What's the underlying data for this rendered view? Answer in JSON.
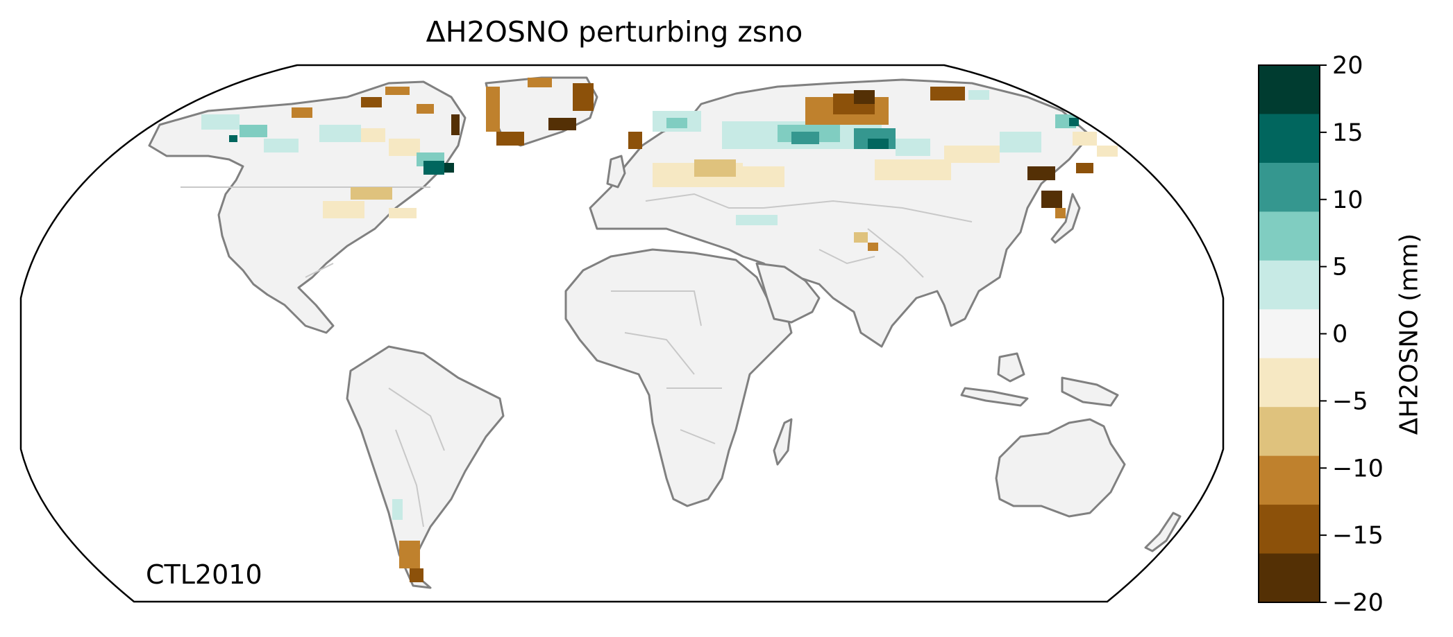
{
  "title": "ΔH2OSNO perturbing zsno",
  "panel_label": "CTL2010",
  "colorbar": {
    "label": "ΔH2OSNO (mm)",
    "ticks": [
      "20",
      "15",
      "10",
      "5",
      "0",
      "−5",
      "−10",
      "−15",
      "−20"
    ],
    "range": [
      -20,
      20
    ],
    "bins": [
      {
        "from": 15,
        "to": 20,
        "color": "#003c30"
      },
      {
        "from": 10,
        "to": 15,
        "color": "#01665e"
      },
      {
        "from": 5,
        "to": 10,
        "color": "#35978f"
      },
      {
        "from": 2.5,
        "to": 5,
        "color": "#80cdc1"
      },
      {
        "from": 0,
        "to": 2.5,
        "color": "#c7eae5"
      },
      {
        "from": -2.5,
        "to": 0,
        "color": "#f5f5f5"
      },
      {
        "from": -5,
        "to": -2.5,
        "color": "#f6e8c3"
      },
      {
        "from": -10,
        "to": -5,
        "color": "#dfc27d"
      },
      {
        "from": -15,
        "to": -10,
        "color": "#bf812d"
      },
      {
        "from": -20,
        "to": -15,
        "color": "#8c510a"
      },
      {
        "from": -25,
        "to": -20,
        "color": "#543005"
      }
    ]
  },
  "map": {
    "projection": "Robinson",
    "coastline_color": "#808080",
    "border_color": "#c8c8c8",
    "land_fill": "#f2f2f2"
  }
}
